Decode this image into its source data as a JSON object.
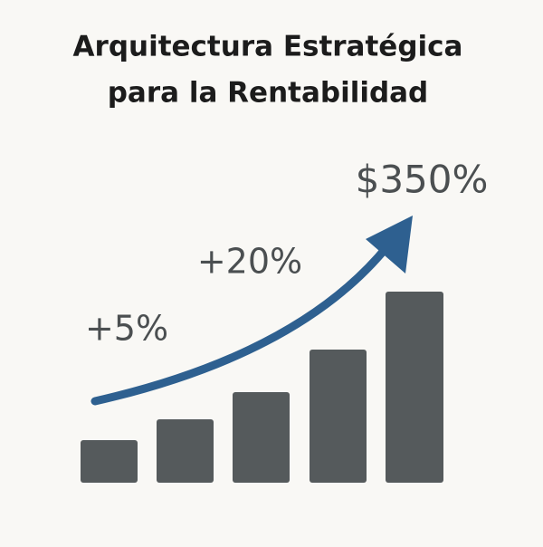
{
  "title": {
    "lines": [
      "Arquitectura Estratégica",
      "para la Rentabilidad"
    ]
  },
  "annotations": [
    "+5%",
    "+20%",
    "$350%"
  ]
}
